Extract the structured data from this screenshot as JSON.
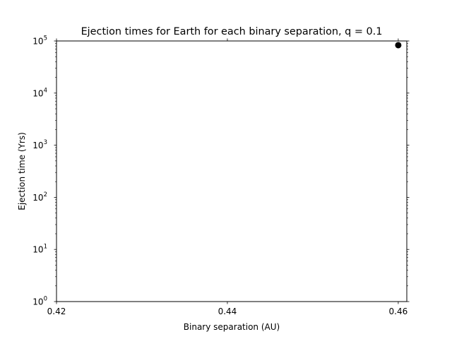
{
  "chart_data": {
    "type": "scatter",
    "title": "Ejection times for Earth for each binary separation, q = 0.1",
    "xlabel": "Binary separation (AU)",
    "ylabel": "Ejection time (Yrs)",
    "xlim": [
      0.42,
      0.461
    ],
    "ylim": [
      1,
      100000
    ],
    "yscale": "log",
    "xticks": [
      0.42,
      0.44,
      0.46
    ],
    "xtick_labels": [
      "0.42",
      "0.44",
      "0.46"
    ],
    "yticks": [
      {
        "value": 1,
        "base": "10",
        "exp": "0"
      },
      {
        "value": 10,
        "base": "10",
        "exp": "1"
      },
      {
        "value": 100,
        "base": "10",
        "exp": "2"
      },
      {
        "value": 1000,
        "base": "10",
        "exp": "3"
      },
      {
        "value": 10000,
        "base": "10",
        "exp": "4"
      },
      {
        "value": 100000,
        "base": "10",
        "exp": "5"
      }
    ],
    "grid": false,
    "series": [
      {
        "x": [
          0.46
        ],
        "y": [
          83000
        ],
        "color": "#000000"
      }
    ]
  }
}
